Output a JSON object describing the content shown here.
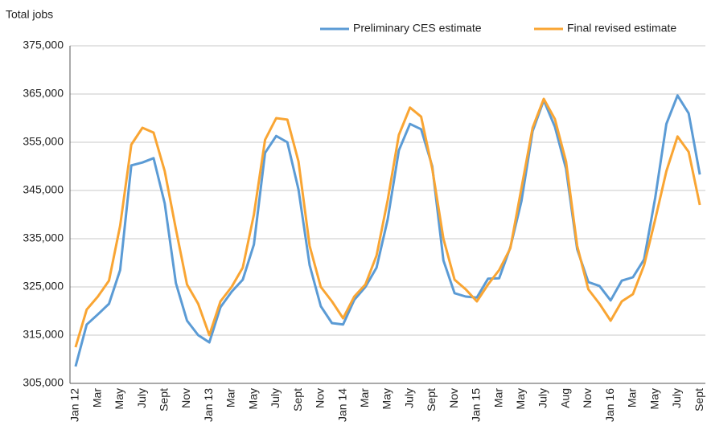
{
  "chart_data": {
    "type": "line",
    "ylabel": "Total jobs",
    "categories": [
      "Jan 12",
      null,
      "Mar",
      null,
      "May",
      null,
      "July",
      null,
      "Sept",
      null,
      "Nov",
      null,
      "Jan 13",
      null,
      "Mar",
      null,
      "May",
      null,
      "July",
      null,
      "Sept",
      null,
      "Nov",
      null,
      "Jan 14",
      null,
      "Mar",
      null,
      "May",
      null,
      "July",
      null,
      "Sept",
      null,
      "Nov",
      null,
      "Jan 15",
      null,
      "Mar",
      null,
      "May",
      null,
      "July",
      null,
      "Aug",
      null,
      "Nov",
      null,
      "Jan 16",
      null,
      "Mar",
      null,
      "May",
      null,
      "July",
      null,
      "Sept"
    ],
    "series": [
      {
        "name": "Preliminary CES estimate",
        "color": "#5b9bd5",
        "values": [
          308500,
          317200,
          319300,
          321500,
          328500,
          350200,
          350800,
          351700,
          342300,
          325800,
          318000,
          315000,
          313500,
          320800,
          324000,
          326500,
          333800,
          352800,
          356300,
          355000,
          345200,
          329500,
          321000,
          317500,
          317200,
          322300,
          325000,
          329000,
          339000,
          353300,
          358800,
          357700,
          350000,
          330500,
          323700,
          323000,
          322800,
          326700,
          326800,
          333200,
          342800,
          357300,
          363700,
          358200,
          349500,
          332800,
          326000,
          325200,
          322200,
          326300,
          327000,
          330700,
          343500,
          358800,
          364700,
          361000,
          348300
        ]
      },
      {
        "name": "Final revised estimate",
        "color": "#f9a533",
        "values": [
          312500,
          320300,
          323000,
          326300,
          337700,
          354500,
          358000,
          357000,
          349000,
          337000,
          325500,
          321500,
          315000,
          322000,
          325000,
          329000,
          340000,
          355500,
          360000,
          359700,
          351000,
          333500,
          325000,
          322000,
          318500,
          323000,
          325500,
          331500,
          343000,
          356500,
          362200,
          360300,
          349500,
          335000,
          326500,
          324500,
          322000,
          325500,
          328500,
          333000,
          345500,
          358000,
          364000,
          359800,
          351000,
          333500,
          324500,
          321500,
          318000,
          322000,
          323500,
          329500,
          339000,
          349000,
          356200,
          353000,
          342000
        ]
      }
    ],
    "ylim": [
      305000,
      375000
    ],
    "yticks": [
      {
        "value": 305000,
        "label": "305,000"
      },
      {
        "value": 315000,
        "label": "315,000"
      },
      {
        "value": 325000,
        "label": "325,000"
      },
      {
        "value": 335000,
        "label": "335,000"
      },
      {
        "value": 345000,
        "label": "345,000"
      },
      {
        "value": 355000,
        "label": "355,000"
      },
      {
        "value": 365000,
        "label": "365,000"
      },
      {
        "value": 375000,
        "label": "375,000"
      }
    ],
    "grid": true,
    "legend": "top-right"
  }
}
